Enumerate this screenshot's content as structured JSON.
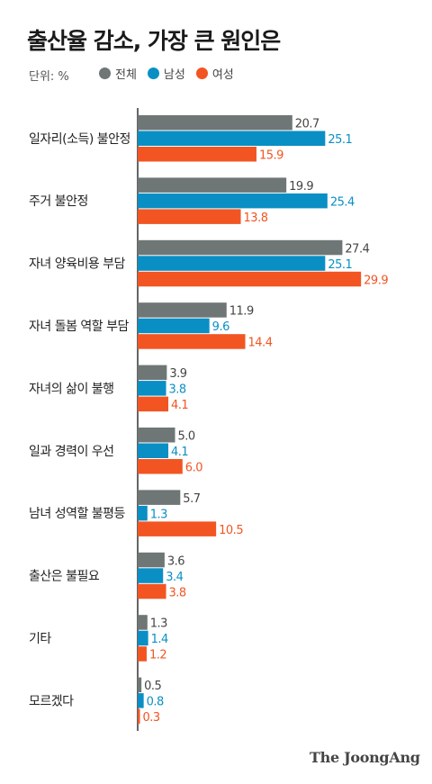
{
  "title": "출산율 감소, 가장 큰 원인은",
  "unit": "단위: %",
  "legend": [
    {
      "name": "전체",
      "color": "#6f7676"
    },
    {
      "name": "남성",
      "color": "#0a8fc4"
    },
    {
      "name": "여성",
      "color": "#f25522"
    }
  ],
  "brand": "The JoongAng",
  "chart_data": {
    "type": "bar",
    "orientation": "horizontal",
    "categories": [
      "일자리(소득) 불안정",
      "주거 불안정",
      "자녀 양육비용 부담",
      "자녀 돌봄 역할 부담",
      "자녀의 삶이 불행",
      "일과 경력이 우선",
      "남녀 성역할 불평등",
      "출산은 불필요",
      "기타",
      "모르겠다"
    ],
    "series": [
      {
        "name": "전체",
        "color": "#6f7676",
        "values": [
          20.7,
          19.9,
          27.4,
          11.9,
          3.9,
          5.0,
          5.7,
          3.6,
          1.3,
          0.5
        ],
        "labels": [
          "20.7",
          "19.9",
          "27.4",
          "11.9",
          "3.9",
          "5.0",
          "5.7",
          "3.6",
          "1.3",
          "0.5"
        ]
      },
      {
        "name": "남성",
        "color": "#0a8fc4",
        "values": [
          25.1,
          25.4,
          25.1,
          9.6,
          3.8,
          4.1,
          1.3,
          3.4,
          1.4,
          0.8
        ],
        "labels": [
          "25.1",
          "25.4",
          "25.1",
          "9.6",
          "3.8",
          "4.1",
          "1.3",
          "3.4",
          "1.4",
          "0.8"
        ]
      },
      {
        "name": "여성",
        "color": "#f25522",
        "values": [
          15.9,
          13.8,
          29.9,
          14.4,
          4.1,
          6.0,
          10.5,
          3.8,
          1.2,
          0.3
        ],
        "labels": [
          "15.9",
          "13.8",
          "29.9",
          "14.4",
          "4.1",
          "6.0",
          "10.5",
          "3.8",
          "1.2",
          "0.3"
        ]
      }
    ],
    "xlim": [
      0,
      30
    ],
    "grid": false,
    "legend_position": "top"
  }
}
